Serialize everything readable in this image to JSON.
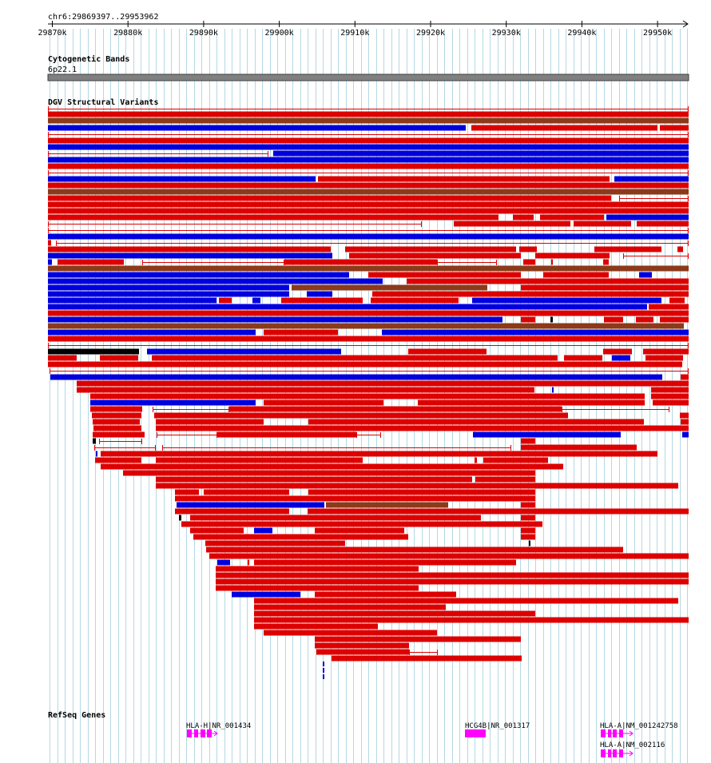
{
  "ruler": {
    "region_label": "chr6:29869397..29953962",
    "chrom": "chr6",
    "start": 29869397,
    "end": 29953962,
    "tick_labels": [
      "29870k",
      "29880k",
      "29890k",
      "29900k",
      "29910k",
      "29920k",
      "29930k",
      "29940k",
      "29950k"
    ]
  },
  "tracks": {
    "cytoband": {
      "title": "Cytogenetic Bands",
      "band_label": "6p22.1"
    },
    "dgv": {
      "title": "DGV Structural Variants",
      "legend_colors": {
        "loss": "#dd0000",
        "gain": "#0000dd",
        "gain_loss": "#8b3a1a",
        "other": "#000000"
      }
    },
    "refseq": {
      "title": "RefSeq Genes",
      "gene_color": "#ff00ff",
      "genes": [
        {
          "label": "HLA-H|NR_001434"
        },
        {
          "label": "HCG4B|NR_001317"
        },
        {
          "label": "HLA-A|NM_001242758"
        },
        {
          "label": "HLA-A|NM_002116"
        }
      ]
    }
  },
  "colors": {
    "grid": "#b4d8e4",
    "loss": "#dd0000",
    "gain": "#0000dd",
    "gain_loss": "#8b3a1a",
    "black": "#000000",
    "cytoband_fill": "#808080",
    "gene": "#ff00ff"
  }
}
